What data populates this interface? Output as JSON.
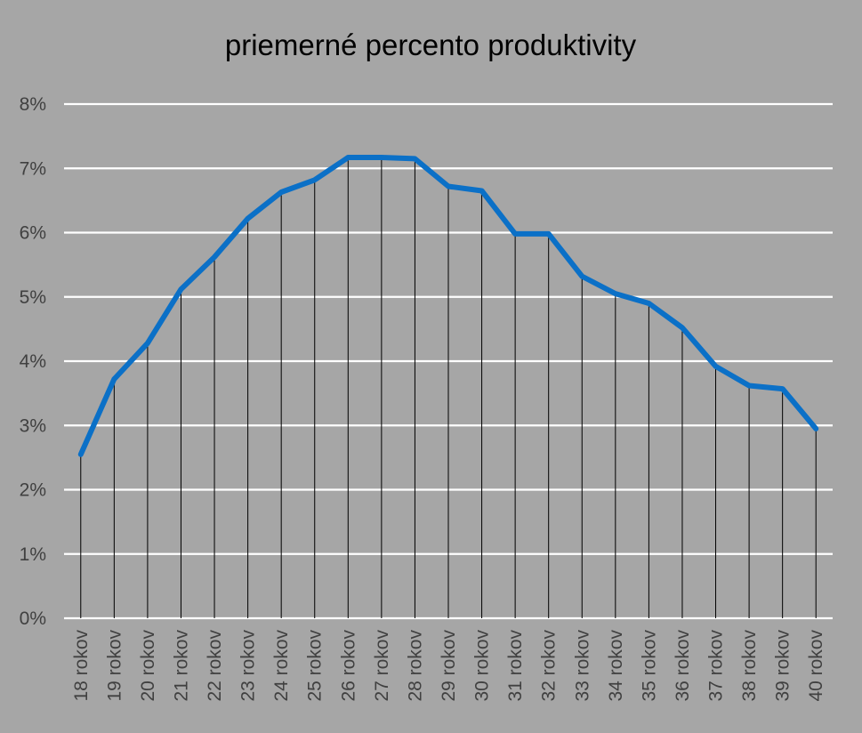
{
  "chart_data": {
    "type": "line",
    "title": "priemerné percento produktivity",
    "xlabel": "",
    "ylabel": "",
    "categories": [
      "18 rokov",
      "19 rokov",
      "20 rokov",
      "21 rokov",
      "22 rokov",
      "23 rokov",
      "24 rokov",
      "25 rokov",
      "26 rokov",
      "27 rokov",
      "28 rokov",
      "29 rokov",
      "30 rokov",
      "31 rokov",
      "32 rokov",
      "33 rokov",
      "34 rokov",
      "35 rokov",
      "36 rokov",
      "37 rokov",
      "38 rokov",
      "39 rokov",
      "40 rokov"
    ],
    "series": [
      {
        "values": [
          2.55,
          3.72,
          4.28,
          5.12,
          5.62,
          6.22,
          6.63,
          6.82,
          7.17,
          7.17,
          7.15,
          6.72,
          6.65,
          5.98,
          5.98,
          5.32,
          5.05,
          4.9,
          4.52,
          3.92,
          3.62,
          3.57,
          2.95
        ],
        "color": "#0b70c7"
      }
    ],
    "y_ticks": [
      "0%",
      "1%",
      "2%",
      "3%",
      "4%",
      "5%",
      "6%",
      "7%",
      "8%"
    ],
    "ylim": [
      0,
      8
    ],
    "grid": true,
    "drop_lines": true,
    "legend": "none"
  }
}
